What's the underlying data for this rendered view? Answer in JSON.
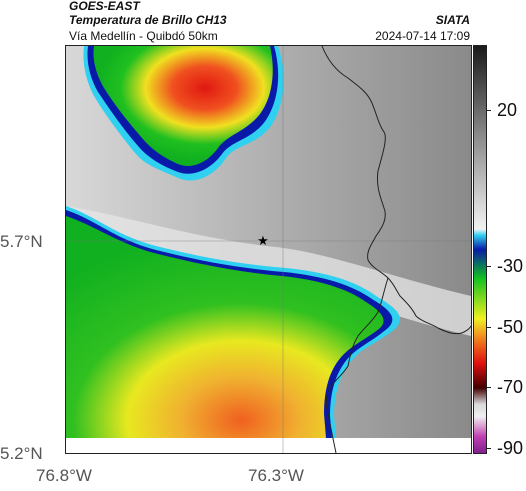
{
  "header": {
    "satellite": "GOES-EAST",
    "product": "Temperatura de Brillo CH13",
    "route": "Vía Medellín - Quibdó 50km",
    "organization": "SIATA",
    "timestamp": "2024-07-14 17:09"
  },
  "map": {
    "lat_ticks": [
      "5.7°N",
      "5.2°N"
    ],
    "lon_ticks": [
      "76.8°W",
      "76.3°W"
    ],
    "marker": "star-icon"
  },
  "colorbar": {
    "ticks": [
      "20",
      "-30",
      "-50",
      "-70",
      "-90"
    ],
    "colors": {
      "warm_gray_top": "#1a1a1a",
      "warm_gray_bottom": "#f2f2f2",
      "cyan": "#2fd0f0",
      "blue": "#0a1aa8",
      "green": "#10c020",
      "yellow": "#f0f020",
      "orange": "#f08020",
      "red": "#e01010",
      "dark_red": "#400000",
      "magenta": "#c040b0"
    }
  }
}
